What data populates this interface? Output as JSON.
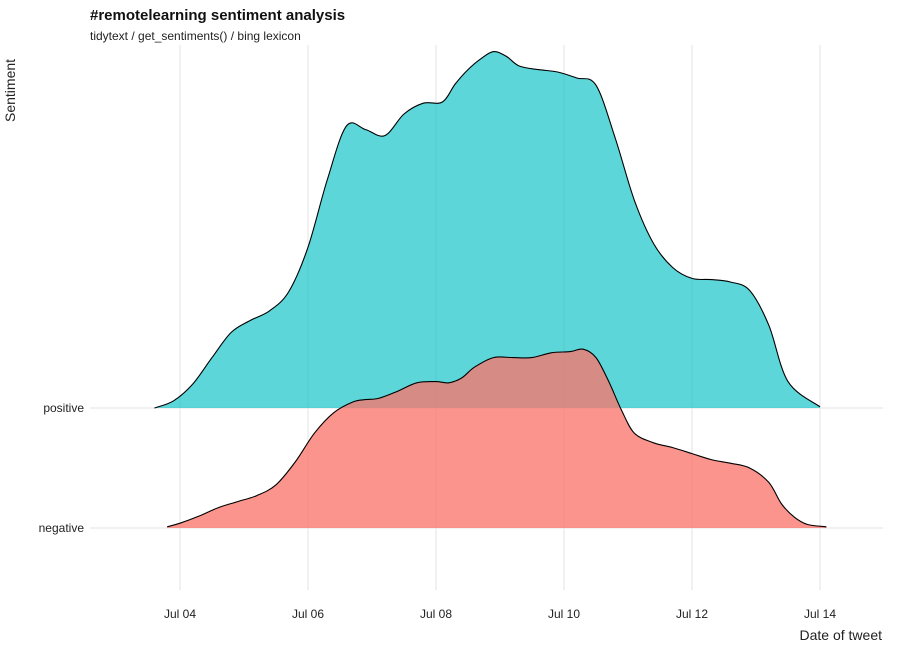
{
  "chart_data": {
    "type": "area",
    "title": "#remotelearning sentiment analysis",
    "subtitle": "tidytext / get_sentiments() / bing lexicon",
    "xlabel": "Date of tweet",
    "ylabel": "Sentiment",
    "grid": true,
    "legend": "none",
    "x_ticks": [
      {
        "value": 4,
        "label": "Jul 04"
      },
      {
        "value": 6,
        "label": "Jul 06"
      },
      {
        "value": 8,
        "label": "Jul 08"
      },
      {
        "value": 10,
        "label": "Jul 10"
      },
      {
        "value": 12,
        "label": "Jul 12"
      },
      {
        "value": 14,
        "label": "Jul 14"
      }
    ],
    "y_categories": [
      "negative",
      "positive"
    ],
    "x_range": [
      3.0,
      15.0
    ],
    "density_scale_max": 1.0,
    "series": [
      {
        "name": "negative",
        "color": "#F8766D",
        "x": [
          3.8,
          4.0,
          4.3,
          4.6,
          4.9,
          5.2,
          5.5,
          5.8,
          6.1,
          6.4,
          6.7,
          6.9,
          7.1,
          7.4,
          7.7,
          8.0,
          8.2,
          8.4,
          8.6,
          8.9,
          9.2,
          9.5,
          9.8,
          10.1,
          10.3,
          10.5,
          10.7,
          10.9,
          11.1,
          11.4,
          11.7,
          12.0,
          12.3,
          12.6,
          12.9,
          13.2,
          13.4,
          13.6,
          13.8,
          14.1
        ],
        "y": [
          0.01,
          0.04,
          0.1,
          0.17,
          0.22,
          0.27,
          0.36,
          0.55,
          0.79,
          0.96,
          1.05,
          1.07,
          1.08,
          1.14,
          1.21,
          1.22,
          1.21,
          1.25,
          1.34,
          1.42,
          1.42,
          1.42,
          1.46,
          1.47,
          1.49,
          1.42,
          1.22,
          0.98,
          0.79,
          0.71,
          0.67,
          0.62,
          0.57,
          0.54,
          0.5,
          0.38,
          0.2,
          0.09,
          0.03,
          0.01
        ]
      },
      {
        "name": "positive",
        "color": "#00BFC4",
        "x": [
          3.6,
          3.9,
          4.2,
          4.5,
          4.8,
          5.1,
          5.4,
          5.7,
          6.0,
          6.3,
          6.6,
          6.9,
          7.2,
          7.5,
          7.8,
          8.1,
          8.3,
          8.5,
          8.7,
          8.9,
          9.1,
          9.3,
          9.6,
          9.9,
          10.2,
          10.5,
          10.8,
          11.1,
          11.4,
          11.7,
          12.0,
          12.3,
          12.6,
          12.9,
          13.2,
          13.5,
          14.0
        ],
        "y": [
          0.0,
          0.06,
          0.2,
          0.42,
          0.63,
          0.73,
          0.81,
          0.97,
          1.34,
          1.9,
          2.35,
          2.32,
          2.27,
          2.45,
          2.54,
          2.55,
          2.7,
          2.82,
          2.91,
          2.97,
          2.93,
          2.85,
          2.82,
          2.8,
          2.75,
          2.69,
          2.25,
          1.73,
          1.37,
          1.17,
          1.08,
          1.07,
          1.05,
          0.98,
          0.69,
          0.22,
          0.01
        ]
      }
    ]
  }
}
